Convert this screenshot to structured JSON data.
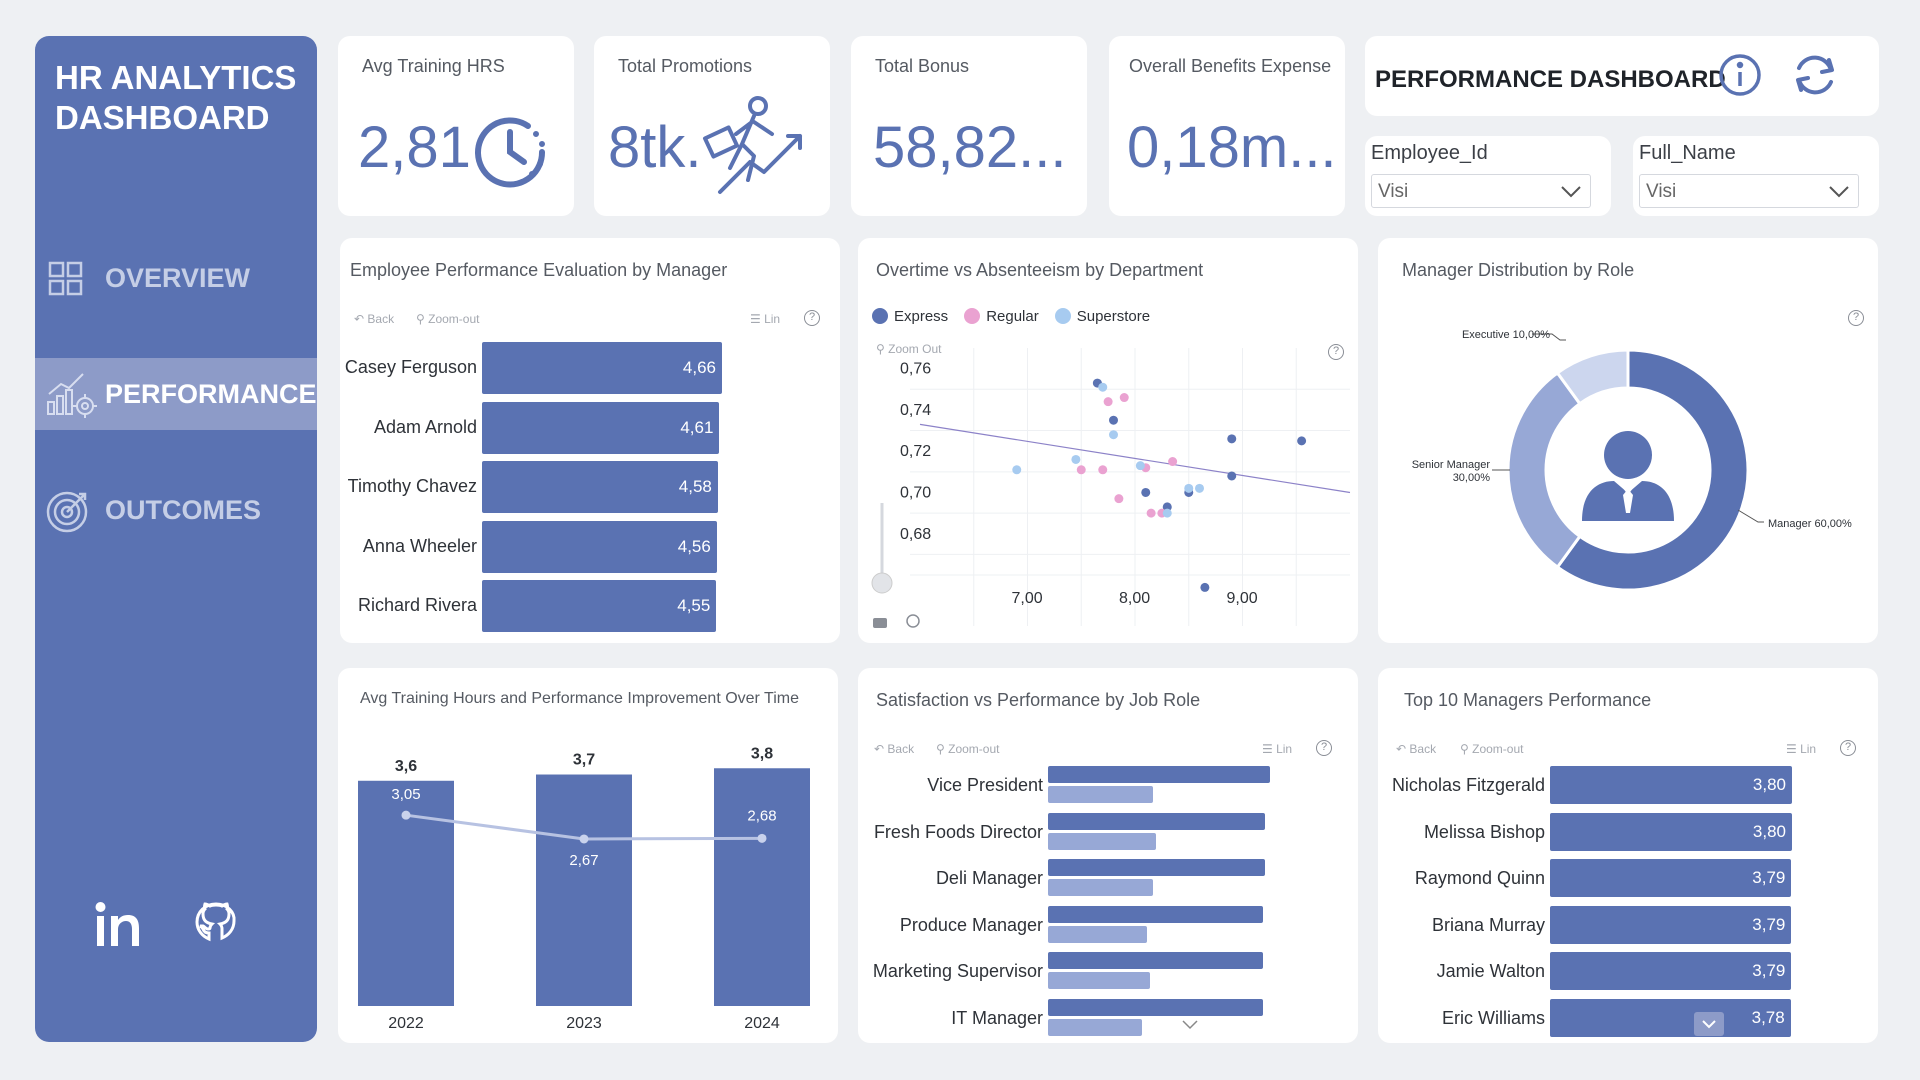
{
  "sidebar": {
    "title_line1": "HR ANALYTICS",
    "title_line2": "DASHBOARD",
    "nav": [
      {
        "label": "OVERVIEW"
      },
      {
        "label": "PERFORMANCE"
      },
      {
        "label": "OUTCOMES"
      }
    ]
  },
  "kpis": [
    {
      "label": "Avg Training HRS",
      "value": "2,81"
    },
    {
      "label": "Total Promotions",
      "value": "8tk."
    },
    {
      "label": "Total Bonus",
      "value": "58,82..."
    },
    {
      "label": "Overall Benefits Expense",
      "value": "0,18m..."
    }
  ],
  "header": {
    "title": "PERFORMANCE DASHBOARD"
  },
  "slicers": [
    {
      "label": "Employee_Id",
      "value": "Visi"
    },
    {
      "label": "Full_Name",
      "value": "Visi"
    }
  ],
  "toolbar": {
    "back": "Back",
    "zoom_out": "Zoom-out",
    "lin": "Lin",
    "zoom_out_scatter": "Zoom Out",
    "help": "?"
  },
  "colors": {
    "accent": "#5a72b2",
    "light": "#97a8d6",
    "pink": "#eaa2d1",
    "sky": "#a7cbf0"
  },
  "chart_data": [
    {
      "type": "bar",
      "title": "Employee Performance Evaluation by Manager",
      "orientation": "horizontal",
      "categories": [
        "Casey Ferguson",
        "Adam Arnold",
        "Timothy Chavez",
        "Anna Wheeler",
        "Richard Rivera"
      ],
      "values": [
        4.66,
        4.61,
        4.58,
        4.56,
        4.55
      ],
      "labels": [
        "4,66",
        "4,61",
        "4,58",
        "4,56",
        "4,55"
      ]
    },
    {
      "type": "scatter",
      "title": "Overtime vs Absenteeism by Department",
      "legend": [
        "Express",
        "Regular",
        "Superstore"
      ],
      "xticks": [
        "7,00",
        "8,00",
        "9,00"
      ],
      "yticks": [
        "0,76",
        "0,74",
        "0,72",
        "0,70",
        "0,68"
      ],
      "xlim": [
        6.0,
        10.0
      ],
      "ylim": [
        0.645,
        0.77
      ],
      "trend": [
        [
          6.0,
          0.733
        ],
        [
          10.0,
          0.7
        ]
      ],
      "series": [
        {
          "name": "Express",
          "points": [
            [
              7.65,
              0.753
            ],
            [
              7.8,
              0.735
            ],
            [
              8.1,
              0.7
            ],
            [
              8.3,
              0.693
            ],
            [
              8.5,
              0.7
            ],
            [
              8.9,
              0.726
            ],
            [
              8.9,
              0.708
            ],
            [
              9.55,
              0.725
            ],
            [
              8.65,
              0.654
            ]
          ]
        },
        {
          "name": "Regular",
          "points": [
            [
              7.75,
              0.744
            ],
            [
              7.9,
              0.746
            ],
            [
              7.5,
              0.711
            ],
            [
              7.7,
              0.711
            ],
            [
              8.1,
              0.712
            ],
            [
              8.35,
              0.715
            ],
            [
              7.85,
              0.697
            ],
            [
              8.15,
              0.69
            ],
            [
              8.25,
              0.69
            ]
          ]
        },
        {
          "name": "Superstore",
          "points": [
            [
              7.7,
              0.751
            ],
            [
              6.9,
              0.711
            ],
            [
              7.45,
              0.716
            ],
            [
              7.8,
              0.728
            ],
            [
              8.05,
              0.713
            ],
            [
              8.3,
              0.69
            ],
            [
              8.6,
              0.702
            ],
            [
              8.5,
              0.702
            ]
          ]
        }
      ]
    },
    {
      "type": "pie",
      "donut": true,
      "title": "Manager Distribution by Role",
      "slices": [
        {
          "name": "Manager",
          "value": 60.0,
          "label": "Manager 60,00%"
        },
        {
          "name": "Senior Manager",
          "value": 30.0,
          "label_line1": "Senior Manager",
          "label_line2": "30,00%"
        },
        {
          "name": "Executive",
          "value": 10.0,
          "label": "Executive 10,00%"
        }
      ]
    },
    {
      "type": "bar",
      "title": "Avg Training Hours and Performance Improvement Over Time",
      "categories": [
        "2022",
        "2023",
        "2024"
      ],
      "values": [
        3.6,
        3.7,
        3.8
      ],
      "labels": [
        "3,6",
        "3,7",
        "3,8"
      ],
      "line_values": [
        3.05,
        2.67,
        2.68
      ],
      "line_labels": [
        "3,05",
        "2,67",
        "2,68"
      ],
      "ylim": [
        0,
        3.9
      ]
    },
    {
      "type": "bar",
      "title": "Satisfaction vs Performance by Job Role",
      "orientation": "horizontal",
      "categories": [
        "Vice President",
        "Fresh Foods Director",
        "Deli Manager",
        "Produce Manager",
        "Marketing Supervisor",
        "IT Manager"
      ],
      "series": [
        {
          "name": "series-1",
          "values": [
            3.8,
            3.71,
            3.71,
            3.68,
            3.68,
            3.68
          ]
        },
        {
          "name": "series-2",
          "values": [
            1.8,
            1.85,
            1.8,
            1.7,
            1.75,
            1.6
          ]
        }
      ],
      "xlim": [
        0,
        4.0
      ]
    },
    {
      "type": "bar",
      "title": "Top 10 Managers Performance",
      "orientation": "horizontal",
      "categories": [
        "Nicholas Fitzgerald",
        "Melissa Bishop",
        "Raymond Quinn",
        "Briana Murray",
        "Jamie Walton",
        "Eric Williams"
      ],
      "values": [
        3.8,
        3.8,
        3.79,
        3.79,
        3.79,
        3.78
      ],
      "labels": [
        "3,80",
        "3,80",
        "3,79",
        "3,79",
        "3,79",
        "3,78"
      ]
    }
  ]
}
